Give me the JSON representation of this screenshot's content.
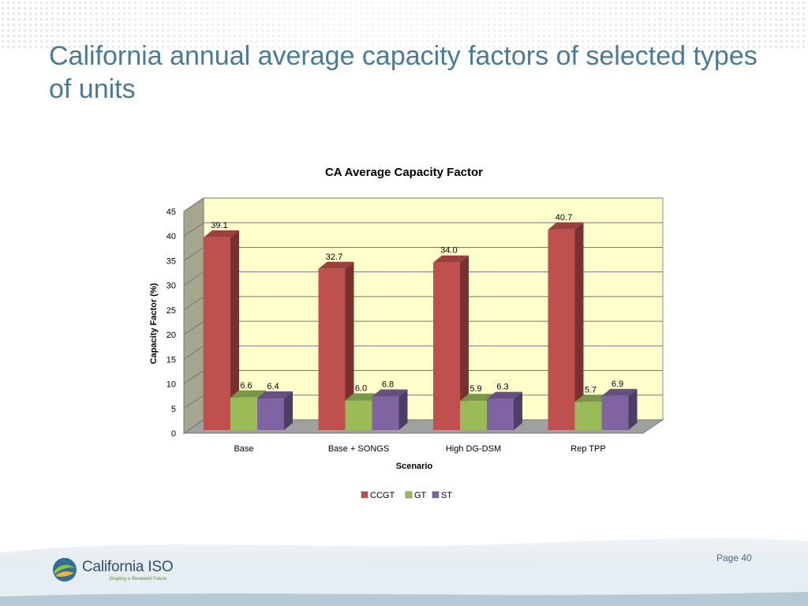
{
  "slide": {
    "title": "California annual average capacity factors of selected types of units",
    "page_label": "Page 40"
  },
  "logo": {
    "name": "California ISO",
    "tagline": "Shaping a Renewed Future"
  },
  "colors": {
    "title": "#4a7a94",
    "plot_bg": "#ffffcc",
    "CCGT": "#c0504d",
    "GT": "#9bbb59",
    "ST": "#8064a2"
  },
  "chart_data": {
    "type": "bar",
    "style": "3d-clustered-column",
    "title": "CA Average Capacity Factor",
    "xlabel": "Scenario",
    "ylabel": "Capacity Factor (%)",
    "ylim": [
      0,
      45
    ],
    "yticks": [
      0,
      5,
      10,
      15,
      20,
      25,
      30,
      35,
      40,
      45
    ],
    "grid": true,
    "legend_position": "bottom",
    "categories": [
      "Base",
      "Base + SONGS",
      "High DG-DSM",
      "Rep TPP"
    ],
    "series": [
      {
        "name": "CCGT",
        "values": [
          39.1,
          32.7,
          34.0,
          40.7
        ],
        "labels": [
          "39.1",
          "32.7",
          "34.0",
          "40.7"
        ]
      },
      {
        "name": "GT",
        "values": [
          6.6,
          6.0,
          5.9,
          5.7
        ],
        "labels": [
          "6.6",
          "6.0",
          "5.9",
          "5.7"
        ]
      },
      {
        "name": "ST",
        "values": [
          6.4,
          6.8,
          6.3,
          6.9
        ],
        "labels": [
          "6.4",
          "6.8",
          "6.3",
          "6.9"
        ]
      }
    ]
  }
}
